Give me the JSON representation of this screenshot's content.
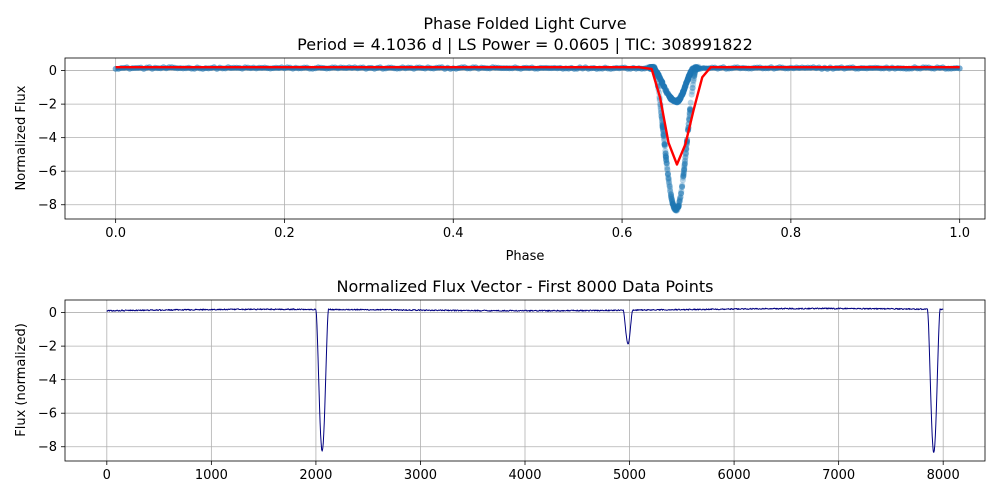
{
  "chart_data": [
    {
      "type": "scatter",
      "title": "Phase Folded Light Curve",
      "subtitle": "Period = 4.1036 d | LS Power = 0.0605 | TIC: 308991822",
      "xlabel": "Phase",
      "ylabel": "Normalized Flux",
      "xlim": [
        -0.06,
        1.03
      ],
      "ylim": [
        -8.85,
        0.75
      ],
      "xticks": [
        0.0,
        0.2,
        0.4,
        0.6,
        0.8,
        1.0
      ],
      "xtick_labels": [
        "0.0",
        "0.2",
        "0.4",
        "0.6",
        "0.8",
        "1.0"
      ],
      "yticks": [
        0,
        -2,
        -4,
        -6,
        -8
      ],
      "ytick_labels": [
        "0",
        "−2",
        "−4",
        "−6",
        "−8"
      ],
      "grid": true,
      "colors": {
        "points": "#1f77b4",
        "binned": "#ff0000"
      },
      "series": [
        {
          "kind": "points",
          "baseline": 0.15,
          "shallow_dip": {
            "center": 0.664,
            "depth": -1.85,
            "ingress": 0.636,
            "egress": 0.685
          },
          "deep_dip": {
            "center": 0.664,
            "depth": -8.3,
            "ingress": 0.638,
            "egress": 0.688
          }
        },
        {
          "kind": "binned-line",
          "x": [
            0.0,
            0.62,
            0.635,
            0.645,
            0.655,
            0.665,
            0.675,
            0.685,
            0.695,
            0.705,
            1.0
          ],
          "y": [
            0.2,
            0.2,
            0.1,
            -1.6,
            -4.3,
            -5.6,
            -4.4,
            -2.3,
            -0.4,
            0.2,
            0.2
          ]
        }
      ]
    },
    {
      "type": "line",
      "title": "Normalized Flux Vector - First 8000 Data Points",
      "xlabel": "",
      "ylabel": "Flux (normalized)",
      "xlim": [
        -400,
        8400
      ],
      "ylim": [
        -8.85,
        0.75
      ],
      "xticks": [
        0,
        1000,
        2000,
        3000,
        4000,
        5000,
        6000,
        7000,
        8000
      ],
      "xtick_labels": [
        "0",
        "1000",
        "2000",
        "3000",
        "4000",
        "5000",
        "6000",
        "7000",
        "8000"
      ],
      "yticks": [
        0,
        -2,
        -4,
        -6,
        -8
      ],
      "ytick_labels": [
        "0",
        "−2",
        "−4",
        "−6",
        "−8"
      ],
      "grid": true,
      "colors": {
        "line": "#000080"
      },
      "series": [
        {
          "x_range": [
            0,
            8000
          ],
          "baseline": 0.15,
          "dips": [
            {
              "center": 2060,
              "depth": -8.3,
              "start": 2000,
              "end": 2120
            },
            {
              "center": 4985,
              "depth": -1.85,
              "start": 4940,
              "end": 5030
            },
            {
              "center": 7910,
              "depth": -8.4,
              "start": 7850,
              "end": 7970
            }
          ]
        }
      ]
    }
  ]
}
